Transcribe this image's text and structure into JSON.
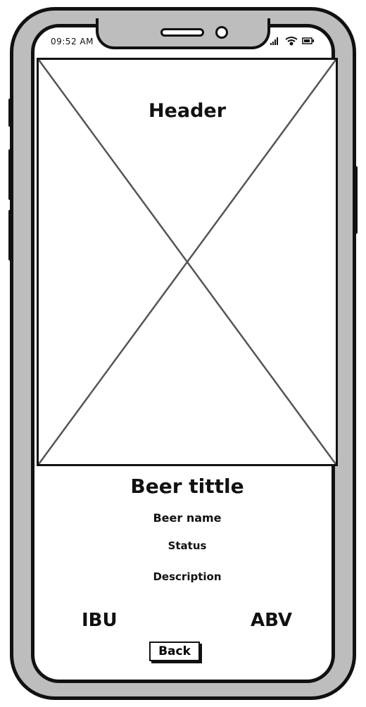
{
  "status_bar": {
    "time": "09:52 AM",
    "icons": [
      "signal-icon",
      "wifi-icon",
      "battery-icon"
    ]
  },
  "header": {
    "label": "Header",
    "image": "image-placeholder-icon"
  },
  "beer": {
    "title": "Beer tittle",
    "name": "Beer name",
    "status": "Status",
    "description": "Description",
    "ibu_label": "IBU",
    "abv_label": "ABV"
  },
  "actions": {
    "back_label": "Back"
  },
  "colors": {
    "frame": "#111111",
    "bezel": "#bdbdbd",
    "screen": "#ffffff",
    "placeholder_cross": "#555555"
  }
}
